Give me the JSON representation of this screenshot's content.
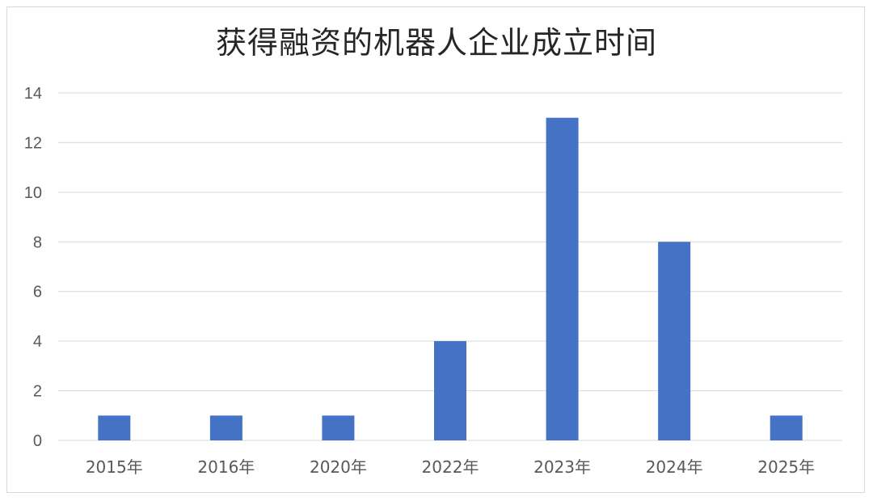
{
  "chart_data": {
    "type": "bar",
    "title": "获得融资的机器人企业成立时间",
    "xlabel": "",
    "ylabel": "",
    "categories": [
      "2015年",
      "2016年",
      "2020年",
      "2022年",
      "2023年",
      "2024年",
      "2025年"
    ],
    "values": [
      1,
      1,
      1,
      4,
      13,
      8,
      1
    ],
    "ylim": [
      0,
      14
    ],
    "yticks": [
      "0",
      "2",
      "4",
      "6",
      "8",
      "10",
      "12",
      "14"
    ],
    "grid": true,
    "legend": "none",
    "bar_color": "#4472C4",
    "grid_color": "#d9d9d9"
  }
}
